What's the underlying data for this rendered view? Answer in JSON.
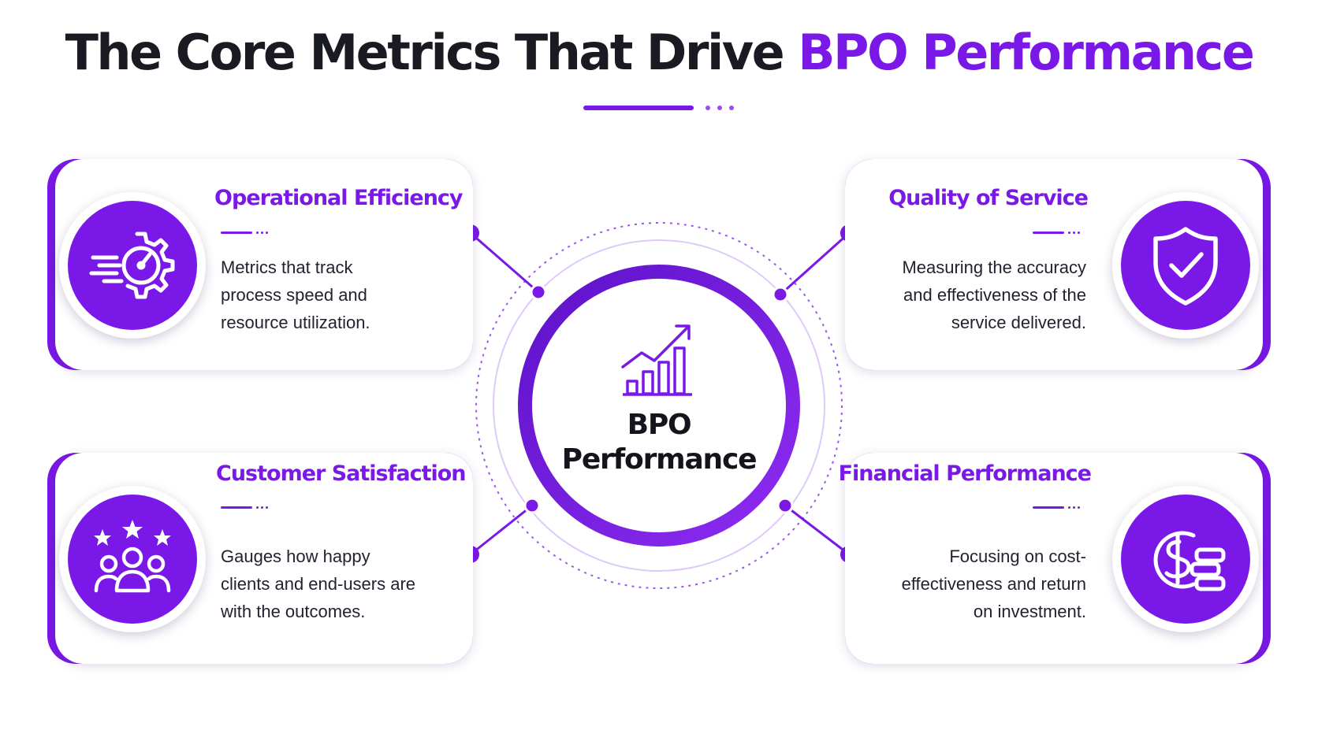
{
  "header": {
    "title_prefix": "The Core Metrics That Drive ",
    "title_accent": "BPO Performance"
  },
  "hub": {
    "line1": "BPO",
    "line2": "Performance",
    "icon": "growth-chart-icon"
  },
  "cards": {
    "operational_efficiency": {
      "title": "Operational Efficiency",
      "description": "Metrics that track process speed and resource utilization.",
      "icon": "gear-speedometer-icon"
    },
    "quality_of_service": {
      "title": "Quality of Service",
      "description": "Measuring the accuracy and effectiveness of the service delivered.",
      "icon": "shield-check-icon"
    },
    "customer_satisfaction": {
      "title": "Customer Satisfaction",
      "description": "Gauges how happy clients and end-users are with the outcomes.",
      "icon": "users-stars-icon"
    },
    "financial_performance": {
      "title": "Financial Performance",
      "description": "Focusing on cost-effectiveness and return on investment.",
      "icon": "dollar-coins-icon"
    }
  },
  "colors": {
    "accent": "#7a18e8",
    "text_dark": "#1a1a22",
    "background": "#ffffff"
  }
}
